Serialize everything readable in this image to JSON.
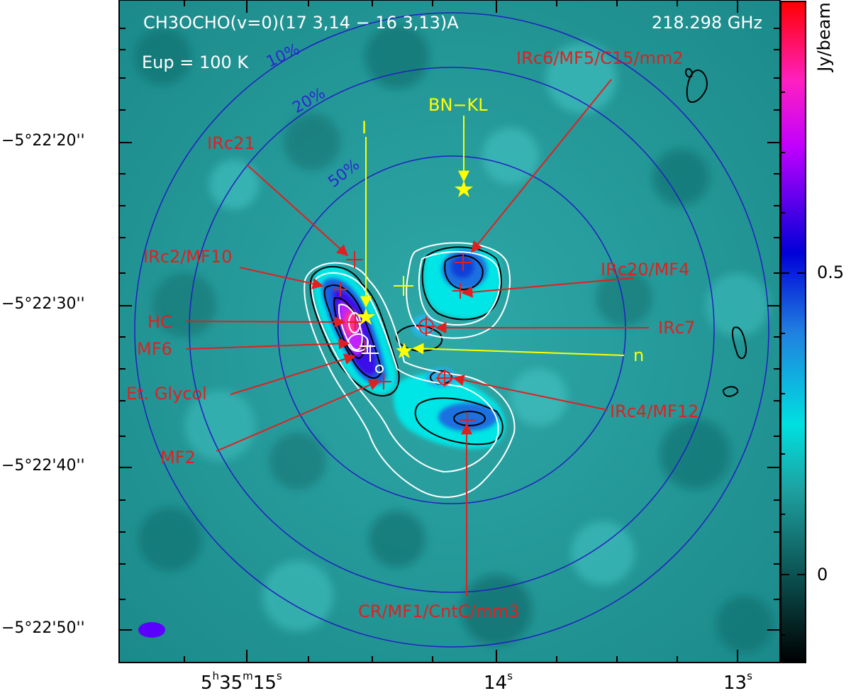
{
  "map": {
    "line_name": "CH3OCHO(v=0)(17 3,14 − 16 3,13)A",
    "frequency": "218.298 GHz",
    "eup": "Eup = 100 K",
    "beam_levels": [
      "10%",
      "20%",
      "50%"
    ],
    "sources_red": [
      "IRc6/MF5/C15/mm2",
      "IRc21",
      "IRc2/MF10",
      "HC",
      "MF6",
      "Et. Glycol",
      "MF2",
      "IRc20/MF4",
      "IRc7",
      "IRc4/MF12",
      "CR/MF1/CntC/mm3"
    ],
    "sources_yellow": [
      "BN−KL",
      "I",
      "n"
    ]
  },
  "colorbar": {
    "unit": "Jy/beam",
    "tick_labels": [
      "0.5",
      "0"
    ],
    "colors": [
      "#000000",
      "#00d8d8",
      "#0000e0",
      "#ff00ff",
      "#ff0000"
    ]
  },
  "axes": {
    "dec_labels": [
      "−5°22'20''",
      "−5°22'30''",
      "−5°22'40''",
      "−5°22'50''"
    ],
    "ra_labels": {
      "ra15": {
        "h": "5",
        "m": "35",
        "s": "15"
      },
      "ra14": "14",
      "ra13": "13"
    }
  },
  "colors": {
    "source_markers": "#e02020",
    "yellow_markers": "#ffff00",
    "beam_circles": "#2020c0",
    "beam_ellipse": "#5a00ff"
  }
}
